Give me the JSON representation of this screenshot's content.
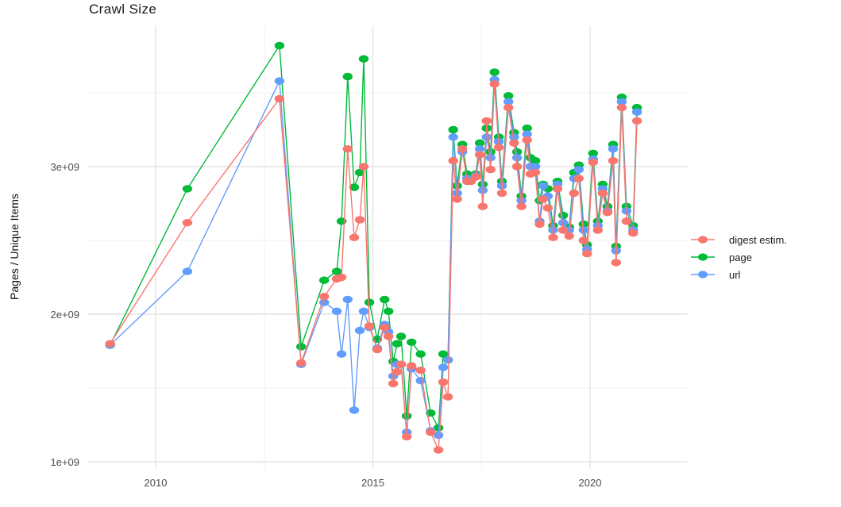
{
  "chart_data": {
    "type": "line",
    "title": "Crawl Size",
    "xlabel": "",
    "ylabel": "Pages / Unique Items",
    "legend_position": "right-center",
    "grid": "on",
    "background_color": "#ffffff",
    "major_grid_color": "#e3e3e3",
    "minor_grid_color": "#f1f1f1",
    "tick_label_color": "#4d4d4d",
    "y_unit": "count (scientific notation, 1e+09 = 1 billion)",
    "x_axis": {
      "range_years": [
        2008.4,
        2022.2
      ],
      "ticks": [
        {
          "label": "2010",
          "year": 2010
        },
        {
          "label": "2015",
          "year": 2015
        },
        {
          "label": "2020",
          "year": 2020
        }
      ],
      "minor_gridline_years": [
        2012.5,
        2017.5
      ]
    },
    "y_axis": {
      "range_billions": [
        0.95,
        3.97
      ],
      "ticks": [
        {
          "label": "1e+09",
          "value_billions": 1
        },
        {
          "label": "2e+09",
          "value_billions": 2
        },
        {
          "label": "3e+09",
          "value_billions": 3
        }
      ],
      "minor_gridline_values_billions": [
        1.5,
        2.5,
        3.5
      ]
    },
    "x_years": [
      2008.95,
      2010.73,
      2012.85,
      2013.35,
      2013.88,
      2014.17,
      2014.28,
      2014.42,
      2014.57,
      2014.7,
      2014.79,
      2014.92,
      2015.1,
      2015.27,
      2015.36,
      2015.47,
      2015.56,
      2015.65,
      2015.78,
      2015.89,
      2016.1,
      2016.33,
      2016.51,
      2016.62,
      2016.73,
      2016.85,
      2016.94,
      2017.06,
      2017.17,
      2017.26,
      2017.37,
      2017.46,
      2017.53,
      2017.62,
      2017.71,
      2017.8,
      2017.9,
      2017.97,
      2018.12,
      2018.25,
      2018.32,
      2018.42,
      2018.55,
      2018.63,
      2018.74,
      2018.84,
      2018.92,
      2019.03,
      2019.15,
      2019.25,
      2019.38,
      2019.52,
      2019.63,
      2019.74,
      2019.85,
      2019.93,
      2020.07,
      2020.18,
      2020.29,
      2020.4,
      2020.53,
      2020.6,
      2020.73,
      2020.84,
      2020.99,
      2021.08
    ],
    "series": [
      {
        "name": "digest estim.",
        "color": "#F8766D",
        "values_billions": [
          1.8,
          2.62,
          3.46,
          1.67,
          2.12,
          2.24,
          2.25,
          3.12,
          2.52,
          2.64,
          3.0,
          1.92,
          1.76,
          1.91,
          1.85,
          1.53,
          1.61,
          1.66,
          1.17,
          1.65,
          1.62,
          1.2,
          1.08,
          1.54,
          1.44,
          3.04,
          2.78,
          3.12,
          2.9,
          2.9,
          2.93,
          3.08,
          2.73,
          3.31,
          2.98,
          3.56,
          3.13,
          2.82,
          3.4,
          3.16,
          3.0,
          2.73,
          3.18,
          2.95,
          2.96,
          2.61,
          2.78,
          2.72,
          2.52,
          2.85,
          2.57,
          2.53,
          2.82,
          2.92,
          2.5,
          2.41,
          3.03,
          2.57,
          2.82,
          2.69,
          3.04,
          2.35,
          3.4,
          2.63,
          2.55,
          3.31
        ]
      },
      {
        "name": "page",
        "color": "#00BA38",
        "values_billions": [
          1.79,
          2.85,
          3.82,
          1.78,
          2.23,
          2.29,
          2.63,
          3.61,
          2.86,
          2.96,
          3.73,
          2.08,
          1.83,
          2.1,
          2.02,
          1.68,
          1.8,
          1.85,
          1.31,
          1.81,
          1.73,
          1.33,
          1.23,
          1.73,
          1.69,
          3.25,
          2.87,
          3.15,
          2.95,
          2.93,
          2.95,
          3.16,
          2.88,
          3.26,
          3.1,
          3.64,
          3.2,
          2.9,
          3.48,
          3.23,
          3.1,
          2.8,
          3.26,
          3.06,
          3.04,
          2.77,
          2.88,
          2.85,
          2.6,
          2.9,
          2.67,
          2.59,
          2.96,
          3.01,
          2.61,
          2.47,
          3.09,
          2.63,
          2.88,
          2.73,
          3.15,
          2.46,
          3.47,
          2.73,
          2.6,
          3.4
        ]
      },
      {
        "name": "url",
        "color": "#619CFF",
        "values_billions": [
          1.79,
          2.29,
          3.58,
          1.66,
          2.08,
          2.02,
          1.73,
          2.1,
          1.35,
          1.89,
          2.02,
          1.91,
          1.77,
          1.93,
          1.88,
          1.58,
          1.66,
          1.66,
          1.2,
          1.63,
          1.55,
          1.21,
          1.18,
          1.64,
          1.69,
          3.2,
          2.82,
          3.1,
          2.92,
          2.91,
          2.94,
          3.12,
          2.84,
          3.2,
          3.06,
          3.59,
          3.17,
          2.87,
          3.44,
          3.2,
          3.06,
          2.77,
          3.22,
          3.0,
          3.0,
          2.63,
          2.87,
          2.8,
          2.57,
          2.88,
          2.62,
          2.57,
          2.92,
          2.98,
          2.57,
          2.44,
          3.05,
          2.6,
          2.85,
          2.7,
          3.12,
          2.43,
          3.44,
          2.7,
          2.57,
          3.37
        ]
      }
    ]
  }
}
